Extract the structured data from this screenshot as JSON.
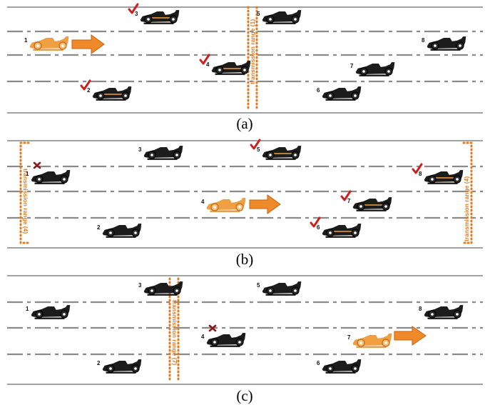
{
  "colors": {
    "accent": "#f0a040",
    "dark_car": "#1c1c1c",
    "check": "#cc1f1f",
    "cross": "#8b1a1a",
    "range": "#e07b22",
    "arrow": "#ef8a2a"
  },
  "panels": [
    {
      "caption": "(a)",
      "range_label": "transmission range (1)",
      "cars": [
        {
          "label": "1",
          "style": "source"
        },
        {
          "label": "2",
          "style": "received",
          "mark": "check"
        },
        {
          "label": "3",
          "style": "received",
          "mark": "check"
        },
        {
          "label": "4",
          "style": "received",
          "mark": "check"
        },
        {
          "label": "5",
          "style": "idle"
        },
        {
          "label": "6",
          "style": "idle"
        },
        {
          "label": "7",
          "style": "idle"
        },
        {
          "label": "8",
          "style": "idle"
        }
      ]
    },
    {
      "caption": "(b)",
      "range_label_left": "transmission range (4)",
      "range_label_right": "transmission range (4)",
      "cars": [
        {
          "label": "1",
          "style": "idle",
          "mark": "cross"
        },
        {
          "label": "2",
          "style": "idle"
        },
        {
          "label": "3",
          "style": "idle"
        },
        {
          "label": "4",
          "style": "source"
        },
        {
          "label": "5",
          "style": "received",
          "mark": "check"
        },
        {
          "label": "6",
          "style": "received",
          "mark": "check"
        },
        {
          "label": "7",
          "style": "received",
          "mark": "check"
        },
        {
          "label": "8",
          "style": "received",
          "mark": "check"
        }
      ]
    },
    {
      "caption": "(c)",
      "range_label": "transmission range (7)",
      "cars": [
        {
          "label": "1",
          "style": "idle"
        },
        {
          "label": "2",
          "style": "idle"
        },
        {
          "label": "3",
          "style": "idle"
        },
        {
          "label": "4",
          "style": "idle",
          "mark": "cross"
        },
        {
          "label": "5",
          "style": "idle"
        },
        {
          "label": "6",
          "style": "idle"
        },
        {
          "label": "7",
          "style": "source"
        },
        {
          "label": "8",
          "style": "idle"
        }
      ]
    }
  ]
}
